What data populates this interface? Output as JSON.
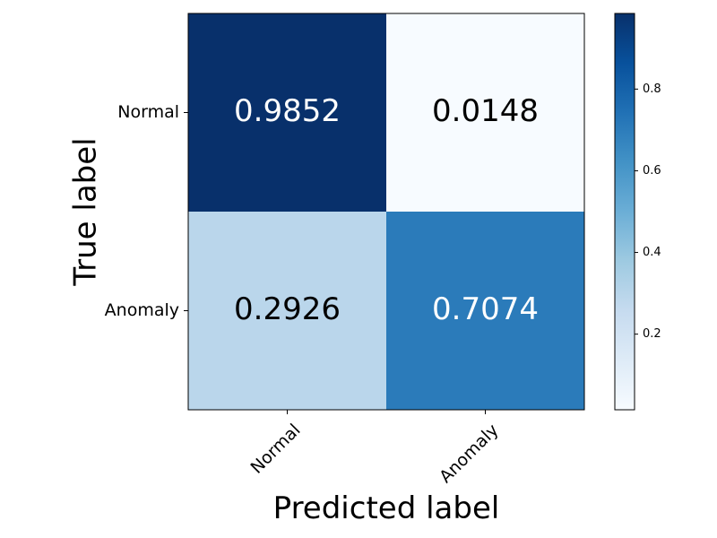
{
  "chart_data": {
    "type": "heatmap",
    "title": "",
    "xlabel": "Predicted label",
    "ylabel": "True label",
    "x_categories": [
      "Normal",
      "Anomaly"
    ],
    "y_categories": [
      "Normal",
      "Anomaly"
    ],
    "values": [
      [
        0.9852,
        0.0148
      ],
      [
        0.2926,
        0.7074
      ]
    ],
    "cell_labels": [
      [
        "0.9852",
        "0.0148"
      ],
      [
        "0.2926",
        "0.7074"
      ]
    ],
    "colormap": "Blues",
    "value_range": [
      0.0148,
      0.9852
    ],
    "colorbar": {
      "ticks": [
        0.2,
        0.4,
        0.6,
        0.8
      ],
      "tick_labels": [
        "0.2",
        "0.4",
        "0.6",
        "0.8"
      ]
    },
    "text_colors": {
      "on_dark": "#ffffff",
      "on_light": "#000000"
    },
    "grid": false
  }
}
